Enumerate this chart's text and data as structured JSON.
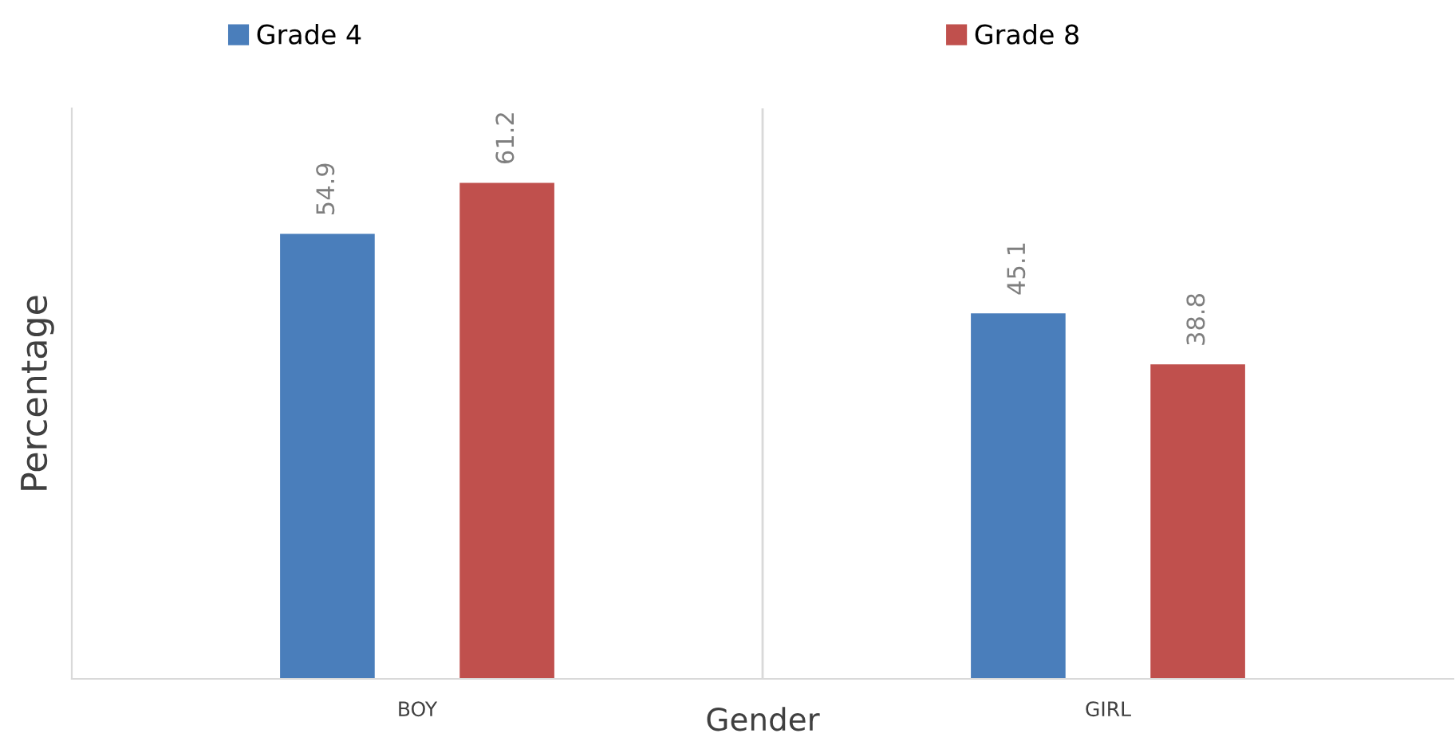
{
  "chart_data": {
    "type": "bar",
    "xlabel": "Gender",
    "ylabel": "Percentage",
    "categories": [
      "BOY",
      "GIRL"
    ],
    "series": [
      {
        "name": "Grade 4",
        "color": "#4a7ebb",
        "values": [
          54.9,
          45.1
        ]
      },
      {
        "name": "Grade 8",
        "color": "#c0504d",
        "values": [
          61.2,
          38.8
        ]
      }
    ],
    "data_labels": true,
    "legend": "top",
    "grid": "x",
    "tick_labels": "x"
  }
}
